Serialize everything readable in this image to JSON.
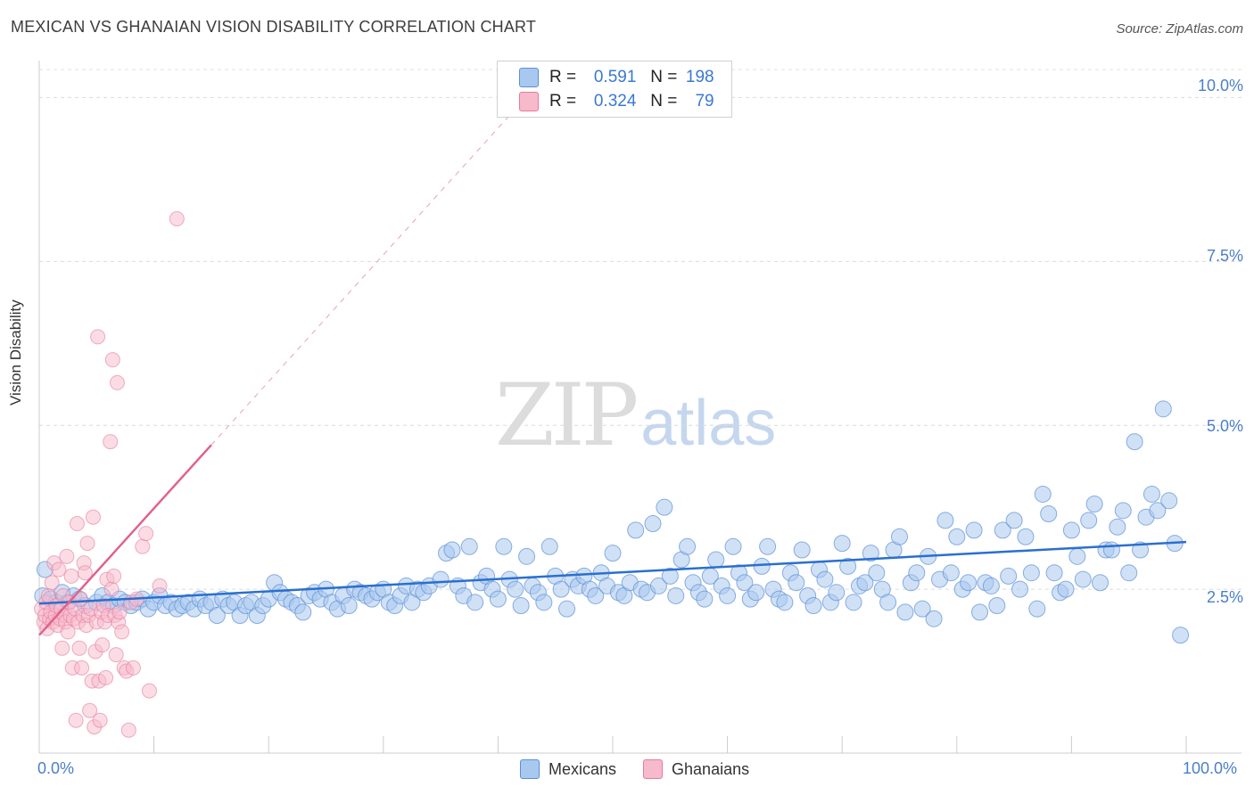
{
  "header": {
    "title": "MEXICAN VS GHANAIAN VISION DISABILITY CORRELATION CHART",
    "source": "Source: ZipAtlas.com"
  },
  "watermark": {
    "zip": "ZIP",
    "atlas": "atlas"
  },
  "legend": {
    "rows": [
      {
        "r_label": "R =",
        "r_value": "0.591",
        "n_label": "N =",
        "n_value": "198"
      },
      {
        "r_label": "R =",
        "r_value": "0.324",
        "n_label": "N =",
        "n_value": "79"
      }
    ]
  },
  "bottom_legend": {
    "series1": "Mexicans",
    "series2": "Ghanaians"
  },
  "colors": {
    "blue_fill": "#a9c8ef",
    "blue_stroke": "#5b8fd6",
    "blue_line": "#2a6fd0",
    "pink_fill": "#f7b9cc",
    "pink_stroke": "#e87a9c",
    "pink_line": "#e0628c",
    "tick_text": "#4a7fc9"
  },
  "chart_data": {
    "type": "scatter",
    "title": "MEXICAN VS GHANAIAN VISION DISABILITY CORRELATION CHART",
    "xlabel": "",
    "ylabel": "Vision Disability",
    "xlim": [
      0,
      100
    ],
    "ylim": [
      0,
      10.4
    ],
    "x_tick_labels": [
      "0.0%",
      "100.0%"
    ],
    "y_tick_labels": [
      "2.5%",
      "5.0%",
      "7.5%",
      "10.0%"
    ],
    "y_ticks": [
      2.5,
      5.0,
      7.5,
      10.0
    ],
    "grid": true,
    "legend_position": "top-center",
    "series": [
      {
        "name": "Mexicans",
        "r": 0.591,
        "n": 198,
        "trend": {
          "x0": 0,
          "y0": 2.28,
          "x1": 100,
          "y1": 3.22
        },
        "points": [
          [
            0.3,
            2.4
          ],
          [
            0.5,
            2.8
          ],
          [
            1,
            2.35
          ],
          [
            1.5,
            2.3
          ],
          [
            2,
            2.45
          ],
          [
            2.5,
            2.3
          ],
          [
            3,
            2.4
          ],
          [
            3.5,
            2.35
          ],
          [
            4,
            2.25
          ],
          [
            5,
            2.3
          ],
          [
            5.5,
            2.4
          ],
          [
            6,
            2.3
          ],
          [
            6.5,
            2.25
          ],
          [
            7,
            2.35
          ],
          [
            7.5,
            2.3
          ],
          [
            8,
            2.25
          ],
          [
            8.5,
            2.3
          ],
          [
            9,
            2.35
          ],
          [
            9.5,
            2.2
          ],
          [
            10,
            2.3
          ],
          [
            10.5,
            2.4
          ],
          [
            11,
            2.25
          ],
          [
            11.5,
            2.3
          ],
          [
            12,
            2.2
          ],
          [
            12.5,
            2.25
          ],
          [
            13,
            2.3
          ],
          [
            13.5,
            2.2
          ],
          [
            14,
            2.35
          ],
          [
            14.5,
            2.25
          ],
          [
            15,
            2.3
          ],
          [
            15.5,
            2.1
          ],
          [
            16,
            2.35
          ],
          [
            16.5,
            2.25
          ],
          [
            17,
            2.3
          ],
          [
            17.5,
            2.1
          ],
          [
            18,
            2.25
          ],
          [
            18.5,
            2.3
          ],
          [
            19,
            2.1
          ],
          [
            19.5,
            2.25
          ],
          [
            20,
            2.35
          ],
          [
            20.5,
            2.6
          ],
          [
            21,
            2.45
          ],
          [
            21.5,
            2.35
          ],
          [
            22,
            2.3
          ],
          [
            22.5,
            2.25
          ],
          [
            23,
            2.15
          ],
          [
            23.5,
            2.4
          ],
          [
            24,
            2.45
          ],
          [
            24.5,
            2.35
          ],
          [
            25,
            2.5
          ],
          [
            25.5,
            2.3
          ],
          [
            26,
            2.2
          ],
          [
            26.5,
            2.4
          ],
          [
            27,
            2.25
          ],
          [
            27.5,
            2.5
          ],
          [
            28,
            2.45
          ],
          [
            28.5,
            2.4
          ],
          [
            29,
            2.35
          ],
          [
            29.5,
            2.45
          ],
          [
            30,
            2.5
          ],
          [
            30.5,
            2.3
          ],
          [
            31,
            2.25
          ],
          [
            31.5,
            2.4
          ],
          [
            32,
            2.55
          ],
          [
            32.5,
            2.3
          ],
          [
            33,
            2.5
          ],
          [
            33.5,
            2.45
          ],
          [
            34,
            2.55
          ],
          [
            35,
            2.65
          ],
          [
            35.5,
            3.05
          ],
          [
            36,
            3.1
          ],
          [
            36.5,
            2.55
          ],
          [
            37,
            2.4
          ],
          [
            37.5,
            3.15
          ],
          [
            38,
            2.3
          ],
          [
            38.5,
            2.6
          ],
          [
            39,
            2.7
          ],
          [
            39.5,
            2.5
          ],
          [
            40,
            2.35
          ],
          [
            40.5,
            3.15
          ],
          [
            41,
            2.65
          ],
          [
            41.5,
            2.5
          ],
          [
            42,
            2.25
          ],
          [
            42.5,
            3.0
          ],
          [
            43,
            2.55
          ],
          [
            43.5,
            2.45
          ],
          [
            44,
            2.3
          ],
          [
            44.5,
            3.15
          ],
          [
            45,
            2.7
          ],
          [
            45.5,
            2.5
          ],
          [
            46,
            2.2
          ],
          [
            46.5,
            2.65
          ],
          [
            47,
            2.55
          ],
          [
            47.5,
            2.7
          ],
          [
            48,
            2.5
          ],
          [
            48.5,
            2.4
          ],
          [
            49,
            2.75
          ],
          [
            49.5,
            2.55
          ],
          [
            50,
            3.05
          ],
          [
            50.5,
            2.45
          ],
          [
            51,
            2.4
          ],
          [
            51.5,
            2.6
          ],
          [
            52,
            3.4
          ],
          [
            52.5,
            2.5
          ],
          [
            53,
            2.45
          ],
          [
            53.5,
            3.5
          ],
          [
            54,
            2.55
          ],
          [
            54.5,
            3.75
          ],
          [
            55,
            2.7
          ],
          [
            55.5,
            2.4
          ],
          [
            56,
            2.95
          ],
          [
            56.5,
            3.15
          ],
          [
            57,
            2.6
          ],
          [
            57.5,
            2.45
          ],
          [
            58,
            2.35
          ],
          [
            58.5,
            2.7
          ],
          [
            59,
            2.95
          ],
          [
            59.5,
            2.55
          ],
          [
            60,
            2.4
          ],
          [
            60.5,
            3.15
          ],
          [
            61,
            2.75
          ],
          [
            61.5,
            2.6
          ],
          [
            62,
            2.35
          ],
          [
            62.5,
            2.45
          ],
          [
            63,
            2.85
          ],
          [
            63.5,
            3.15
          ],
          [
            64,
            2.5
          ],
          [
            64.5,
            2.35
          ],
          [
            65,
            2.3
          ],
          [
            65.5,
            2.75
          ],
          [
            66,
            2.6
          ],
          [
            66.5,
            3.1
          ],
          [
            67,
            2.4
          ],
          [
            67.5,
            2.25
          ],
          [
            68,
            2.8
          ],
          [
            68.5,
            2.65
          ],
          [
            69,
            2.3
          ],
          [
            69.5,
            2.45
          ],
          [
            70,
            3.2
          ],
          [
            70.5,
            2.85
          ],
          [
            71,
            2.3
          ],
          [
            71.5,
            2.55
          ],
          [
            72,
            2.6
          ],
          [
            72.5,
            3.05
          ],
          [
            73,
            2.75
          ],
          [
            73.5,
            2.5
          ],
          [
            74,
            2.3
          ],
          [
            74.5,
            3.1
          ],
          [
            75,
            3.3
          ],
          [
            75.5,
            2.15
          ],
          [
            76,
            2.6
          ],
          [
            76.5,
            2.75
          ],
          [
            77,
            2.2
          ],
          [
            77.5,
            3.0
          ],
          [
            78,
            2.05
          ],
          [
            78.5,
            2.65
          ],
          [
            79,
            3.55
          ],
          [
            79.5,
            2.75
          ],
          [
            80,
            3.3
          ],
          [
            80.5,
            2.5
          ],
          [
            81,
            2.6
          ],
          [
            81.5,
            3.4
          ],
          [
            82,
            2.15
          ],
          [
            82.5,
            2.6
          ],
          [
            83,
            2.55
          ],
          [
            83.5,
            2.25
          ],
          [
            84,
            3.4
          ],
          [
            84.5,
            2.7
          ],
          [
            85,
            3.55
          ],
          [
            85.5,
            2.5
          ],
          [
            86,
            3.3
          ],
          [
            86.5,
            2.75
          ],
          [
            87,
            2.2
          ],
          [
            87.5,
            3.95
          ],
          [
            88,
            3.65
          ],
          [
            88.5,
            2.75
          ],
          [
            89,
            2.45
          ],
          [
            89.5,
            2.5
          ],
          [
            90,
            3.4
          ],
          [
            90.5,
            3.0
          ],
          [
            91,
            2.65
          ],
          [
            91.5,
            3.55
          ],
          [
            92,
            3.8
          ],
          [
            92.5,
            2.6
          ],
          [
            93,
            3.1
          ],
          [
            93.5,
            3.1
          ],
          [
            94,
            3.45
          ],
          [
            94.5,
            3.7
          ],
          [
            95,
            2.75
          ],
          [
            95.5,
            4.75
          ],
          [
            96,
            3.1
          ],
          [
            96.5,
            3.6
          ],
          [
            97,
            3.95
          ],
          [
            97.5,
            3.7
          ],
          [
            98,
            5.25
          ],
          [
            98.5,
            3.85
          ],
          [
            99,
            3.2
          ],
          [
            99.5,
            1.8
          ]
        ]
      },
      {
        "name": "Ghanaians",
        "r": 0.324,
        "n": 79,
        "trend": {
          "x0": 0,
          "y0": 1.8,
          "x1": 15,
          "y1": 4.7
        },
        "points": [
          [
            0.2,
            2.2
          ],
          [
            0.4,
            2.0
          ],
          [
            0.5,
            2.1
          ],
          [
            0.6,
            2.3
          ],
          [
            0.7,
            1.9
          ],
          [
            0.8,
            2.4
          ],
          [
            0.9,
            2.05
          ],
          [
            1.0,
            2.15
          ],
          [
            1.1,
            2.6
          ],
          [
            1.2,
            2.0
          ],
          [
            1.3,
            2.9
          ],
          [
            1.4,
            2.1
          ],
          [
            1.5,
            2.25
          ],
          [
            1.6,
            1.95
          ],
          [
            1.7,
            2.8
          ],
          [
            1.8,
            2.05
          ],
          [
            1.9,
            2.2
          ],
          [
            2.0,
            1.6
          ],
          [
            2.1,
            2.4
          ],
          [
            2.2,
            2.1
          ],
          [
            2.3,
            2.0
          ],
          [
            2.4,
            3.0
          ],
          [
            2.5,
            1.85
          ],
          [
            2.6,
            2.3
          ],
          [
            2.7,
            2.1
          ],
          [
            2.8,
            2.7
          ],
          [
            2.9,
            1.3
          ],
          [
            3.0,
            2.05
          ],
          [
            3.1,
            2.2
          ],
          [
            3.2,
            0.5
          ],
          [
            3.3,
            3.5
          ],
          [
            3.4,
            2.0
          ],
          [
            3.5,
            1.6
          ],
          [
            3.6,
            2.35
          ],
          [
            3.7,
            1.3
          ],
          [
            3.8,
            2.1
          ],
          [
            3.9,
            2.9
          ],
          [
            4.0,
            2.75
          ],
          [
            4.1,
            1.95
          ],
          [
            4.2,
            3.2
          ],
          [
            4.3,
            2.1
          ],
          [
            4.4,
            0.65
          ],
          [
            4.5,
            2.2
          ],
          [
            4.6,
            1.1
          ],
          [
            4.7,
            3.6
          ],
          [
            4.8,
            0.4
          ],
          [
            4.9,
            1.55
          ],
          [
            5.0,
            2.0
          ],
          [
            5.1,
            6.35
          ],
          [
            5.2,
            1.1
          ],
          [
            5.3,
            0.5
          ],
          [
            5.4,
            2.15
          ],
          [
            5.5,
            1.65
          ],
          [
            5.6,
            2.25
          ],
          [
            5.7,
            2.0
          ],
          [
            5.8,
            1.15
          ],
          [
            5.9,
            2.65
          ],
          [
            6.0,
            2.1
          ],
          [
            6.2,
            4.75
          ],
          [
            6.3,
            2.5
          ],
          [
            6.4,
            6.0
          ],
          [
            6.5,
            2.7
          ],
          [
            6.6,
            2.1
          ],
          [
            6.7,
            1.5
          ],
          [
            6.8,
            5.65
          ],
          [
            6.9,
            2.0
          ],
          [
            7.0,
            2.15
          ],
          [
            7.2,
            1.85
          ],
          [
            7.4,
            1.3
          ],
          [
            7.6,
            1.25
          ],
          [
            7.8,
            0.35
          ],
          [
            8.0,
            2.3
          ],
          [
            8.2,
            1.3
          ],
          [
            8.5,
            2.35
          ],
          [
            9.0,
            3.15
          ],
          [
            9.3,
            3.35
          ],
          [
            9.6,
            0.95
          ],
          [
            10.5,
            2.55
          ],
          [
            12.0,
            8.15
          ]
        ]
      }
    ]
  }
}
